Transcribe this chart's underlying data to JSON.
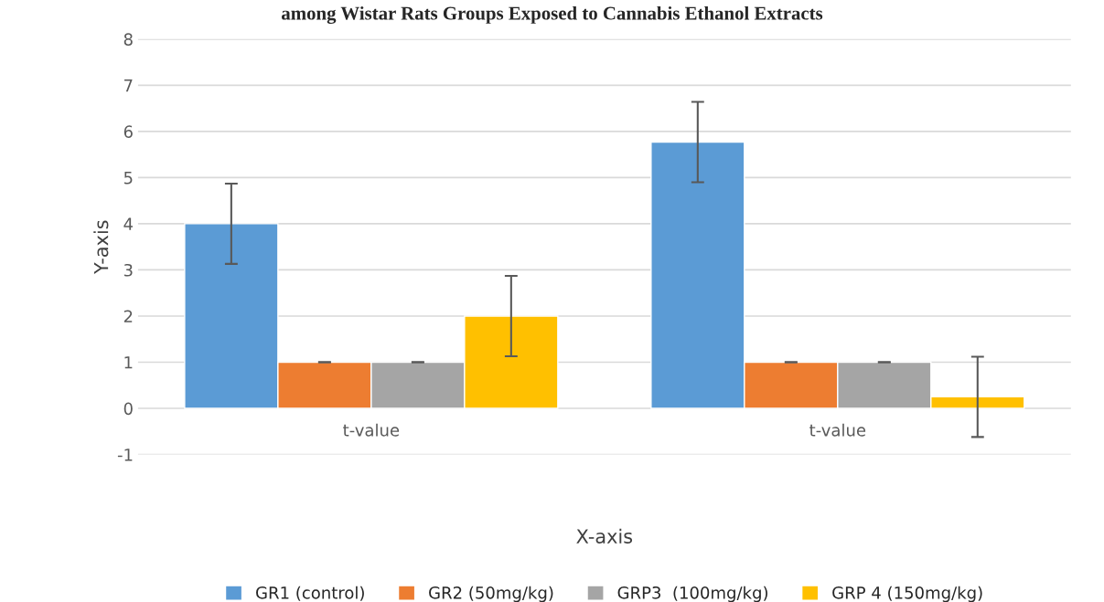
{
  "chart_data": {
    "type": "bar",
    "title": "among Wistar Rats Groups Exposed to Cannabis Ethanol Extracts",
    "xlabel": "X-axis",
    "ylabel": "Y-axis",
    "categories": [
      "t-value",
      "t-value"
    ],
    "series": [
      {
        "name": "GR1 (control)",
        "color": "#5b9bd5",
        "values": [
          4,
          5.77
        ],
        "errors": [
          0.87,
          0.87
        ]
      },
      {
        "name": "GR2 (50mg/kg)",
        "color": "#ed7d31",
        "values": [
          1,
          1
        ],
        "errors": [
          0,
          0
        ]
      },
      {
        "name": "GRP3  (100mg/kg)",
        "color": "#a5a5a5",
        "values": [
          1,
          1
        ],
        "errors": [
          0,
          0
        ]
      },
      {
        "name": "GRP 4 (150mg/kg)",
        "color": "#ffc000",
        "values": [
          2,
          0.25
        ],
        "errors": [
          0.87,
          0.87
        ]
      }
    ],
    "ylim": [
      -1,
      8
    ],
    "yticks": [
      -1,
      0,
      1,
      2,
      3,
      4,
      5,
      6,
      7,
      8
    ],
    "grid": "y",
    "legend": "bottom"
  }
}
